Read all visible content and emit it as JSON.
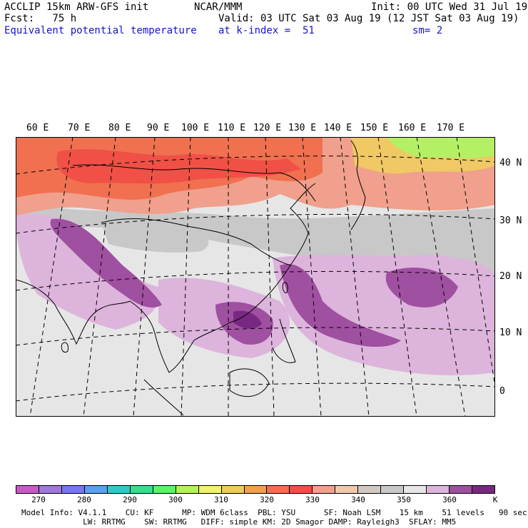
{
  "header": {
    "model": "ACCLIP 15km ARW-GFS init",
    "org": "NCAR/MMM",
    "init": "Init: 00 UTC Wed 31 Jul 19",
    "fcst": "Fcst:   75 h",
    "valid": "Valid: 03 UTC Sat 03 Aug 19 (12 JST Sat 03 Aug 19)",
    "field": "Equivalent potential temperature",
    "level": "at k-index =  51",
    "smooth": "sm= 2"
  },
  "map": {
    "lon_labels": [
      "60 E",
      "70 E",
      "80 E",
      "90 E",
      "100 E",
      "110 E",
      "120 E",
      "130 E",
      "140 E",
      "150 E",
      "160 E",
      "170 E"
    ],
    "lat_labels": [
      "40 N",
      "30 N",
      "20 N",
      "10 N",
      "0"
    ]
  },
  "colorbar": {
    "unit": "K",
    "tick_labels": [
      "270",
      "280",
      "290",
      "300",
      "310",
      "320",
      "330",
      "340",
      "350",
      "360"
    ],
    "colors": [
      "#c85ac8",
      "#a078dc",
      "#7878e6",
      "#5aa0f0",
      "#32c8c8",
      "#3cdc8c",
      "#64f064",
      "#b4f064",
      "#f0f078",
      "#f0c864",
      "#f0a050",
      "#f07050",
      "#f05046",
      "#f0a08c",
      "#f0c8aa",
      "#d2c8c0",
      "#c8c8c8",
      "#e6e6e6",
      "#dcb4dc",
      "#a050a0",
      "#782882"
    ]
  },
  "footer": {
    "line1": "Model Info: V4.1.1    CU: KF      MP: WDM 6class  PBL: YSU      SF: Noah LSM    15 km    51 levels   90 sec",
    "line2": "             LW: RRTMG    SW: RRTMG   DIFF: simple KM: 2D Smagor DAMP: Rayleigh3  SFLAY: MM5"
  }
}
